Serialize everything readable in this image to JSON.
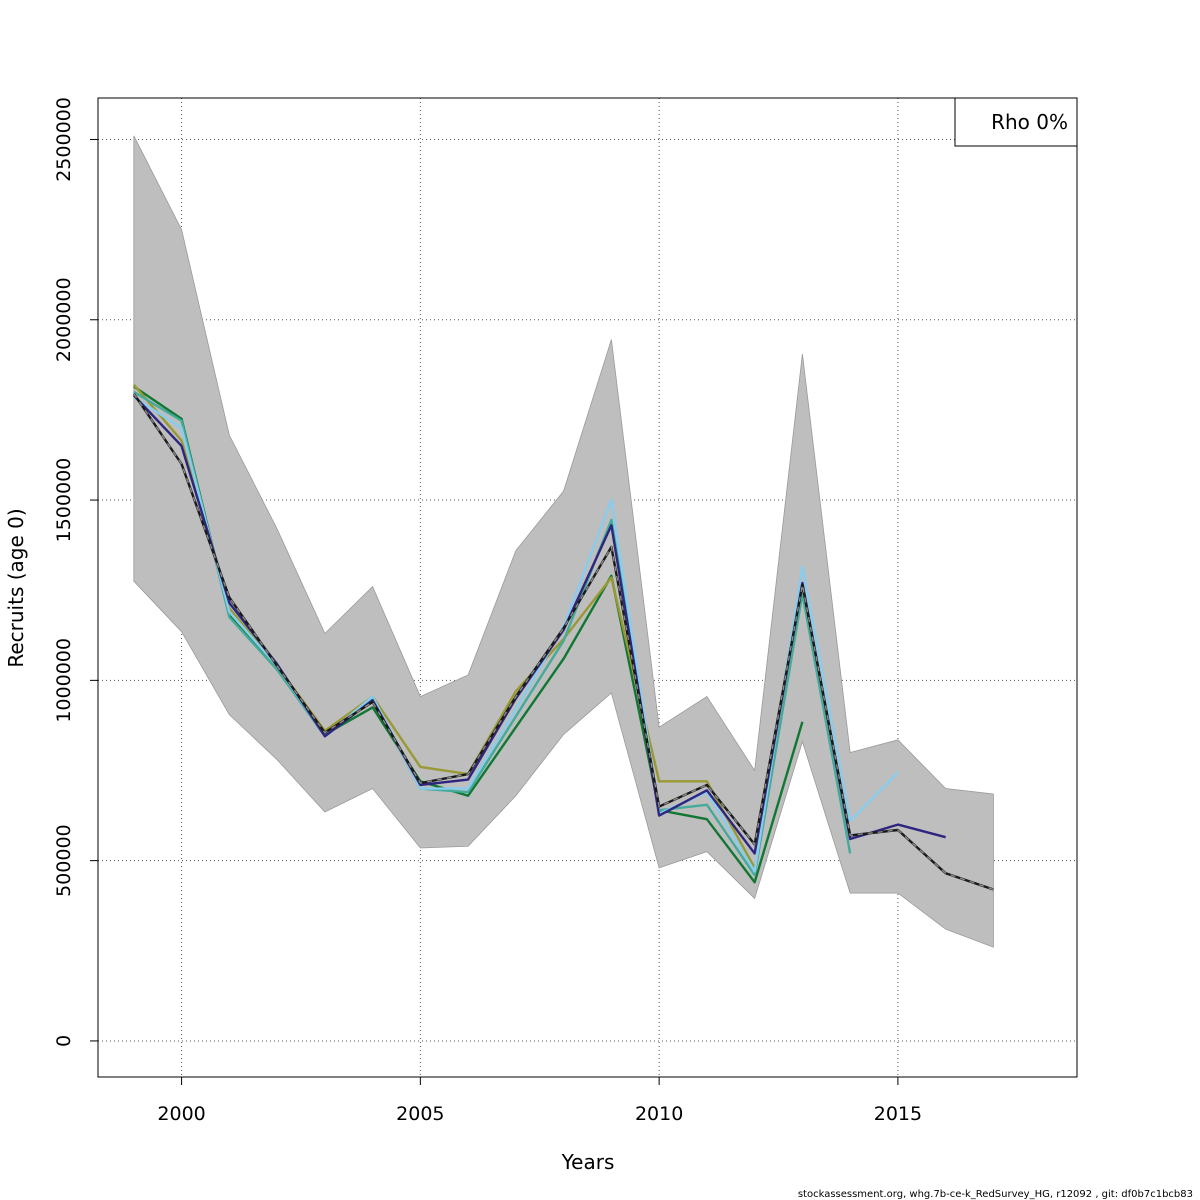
{
  "chart_data": {
    "type": "line",
    "title": "",
    "xlabel": "Years",
    "ylabel": "Recruits (age 0)",
    "xlim": [
      1998.25,
      2018.75
    ],
    "ylim": [
      -100000,
      2615000
    ],
    "x_ticks": [
      2000,
      2005,
      2010,
      2015
    ],
    "x_tick_labels": [
      "2000",
      "2005",
      "2010",
      "2015"
    ],
    "y_ticks": [
      0,
      500000,
      1000000,
      1500000,
      2000000,
      2500000
    ],
    "y_tick_labels": [
      "0",
      "500000",
      "1000000",
      "1500000",
      "2000000",
      "2500000"
    ],
    "grid": true,
    "legend": {
      "position": "top-right",
      "text": "Rho 0%"
    },
    "confidence_band": {
      "color": "#bebebe",
      "x": [
        1999,
        2000,
        2001,
        2002,
        2003,
        2004,
        2005,
        2006,
        2007,
        2008,
        2009,
        2010,
        2011,
        2012,
        2013,
        2014,
        2015,
        2016,
        2017
      ],
      "upper": [
        2510000,
        2250000,
        1680000,
        1420000,
        1130000,
        1260000,
        955000,
        1015000,
        1360000,
        1525000,
        1945000,
        870000,
        955000,
        750000,
        1905000,
        800000,
        835000,
        700000,
        685000
      ],
      "lower": [
        1275000,
        1135000,
        905000,
        780000,
        635000,
        700000,
        535000,
        540000,
        680000,
        850000,
        965000,
        480000,
        525000,
        395000,
        830000,
        410000,
        410000,
        310000,
        260000
      ]
    },
    "series": [
      {
        "color": "#1a1a1a",
        "dashed_overlay": "#8a8a8a",
        "x": [
          1999,
          2000,
          2001,
          2002,
          2003,
          2004,
          2005,
          2006,
          2007,
          2008,
          2009,
          2010,
          2011,
          2012,
          2013,
          2014,
          2015,
          2016,
          2017
        ],
        "values": [
          1795000,
          1600000,
          1230000,
          1040000,
          855000,
          940000,
          715000,
          740000,
          955000,
          1145000,
          1370000,
          650000,
          710000,
          545000,
          1265000,
          570000,
          585000,
          465000,
          420000
        ]
      },
      {
        "color": "#2e2580",
        "x": [
          1999,
          2000,
          2001,
          2002,
          2003,
          2004,
          2005,
          2006,
          2007,
          2008,
          2009,
          2010,
          2011,
          2012,
          2013,
          2014,
          2015,
          2016
        ],
        "values": [
          1790000,
          1650000,
          1215000,
          1045000,
          845000,
          945000,
          710000,
          725000,
          950000,
          1140000,
          1430000,
          625000,
          695000,
          520000,
          1270000,
          560000,
          600000,
          565000
        ]
      },
      {
        "color": "#88ccee",
        "x": [
          1999,
          2000,
          2001,
          2002,
          2003,
          2004,
          2005,
          2006,
          2007,
          2008,
          2009,
          2010,
          2011,
          2012,
          2013,
          2014,
          2015
        ],
        "values": [
          1785000,
          1700000,
          1190000,
          1040000,
          845000,
          955000,
          700000,
          700000,
          920000,
          1150000,
          1500000,
          630000,
          690000,
          470000,
          1315000,
          610000,
          745000
        ]
      },
      {
        "color": "#44aa99",
        "x": [
          1999,
          2000,
          2001,
          2002,
          2003,
          2004,
          2005,
          2006,
          2007,
          2008,
          2009,
          2010,
          2011,
          2012,
          2013,
          2014
        ],
        "values": [
          1800000,
          1720000,
          1175000,
          1030000,
          845000,
          950000,
          700000,
          690000,
          900000,
          1110000,
          1445000,
          640000,
          655000,
          460000,
          1240000,
          520000
        ]
      },
      {
        "color": "#999933",
        "x": [
          1999,
          2000,
          2001,
          2002,
          2003,
          2004,
          2005,
          2006,
          2007,
          2008,
          2009,
          2010,
          2011,
          2012
        ],
        "values": [
          1820000,
          1665000,
          1200000,
          1040000,
          860000,
          955000,
          760000,
          740000,
          970000,
          1115000,
          1285000,
          720000,
          720000,
          480000
        ]
      },
      {
        "color": "#117733",
        "x": [
          1999,
          2000,
          2001,
          2002,
          2003,
          2004,
          2005,
          2006,
          2007,
          2008,
          2009,
          2010,
          2011,
          2012,
          2013
        ],
        "values": [
          1815000,
          1725000,
          1180000,
          1030000,
          850000,
          925000,
          720000,
          680000,
          870000,
          1060000,
          1290000,
          640000,
          615000,
          440000,
          885000
        ]
      }
    ]
  },
  "footer": {
    "note": "stockassessment.org, whg.7b-ce-k_RedSurvey_HG, r12092 , git: df0b7c1bcb83"
  }
}
